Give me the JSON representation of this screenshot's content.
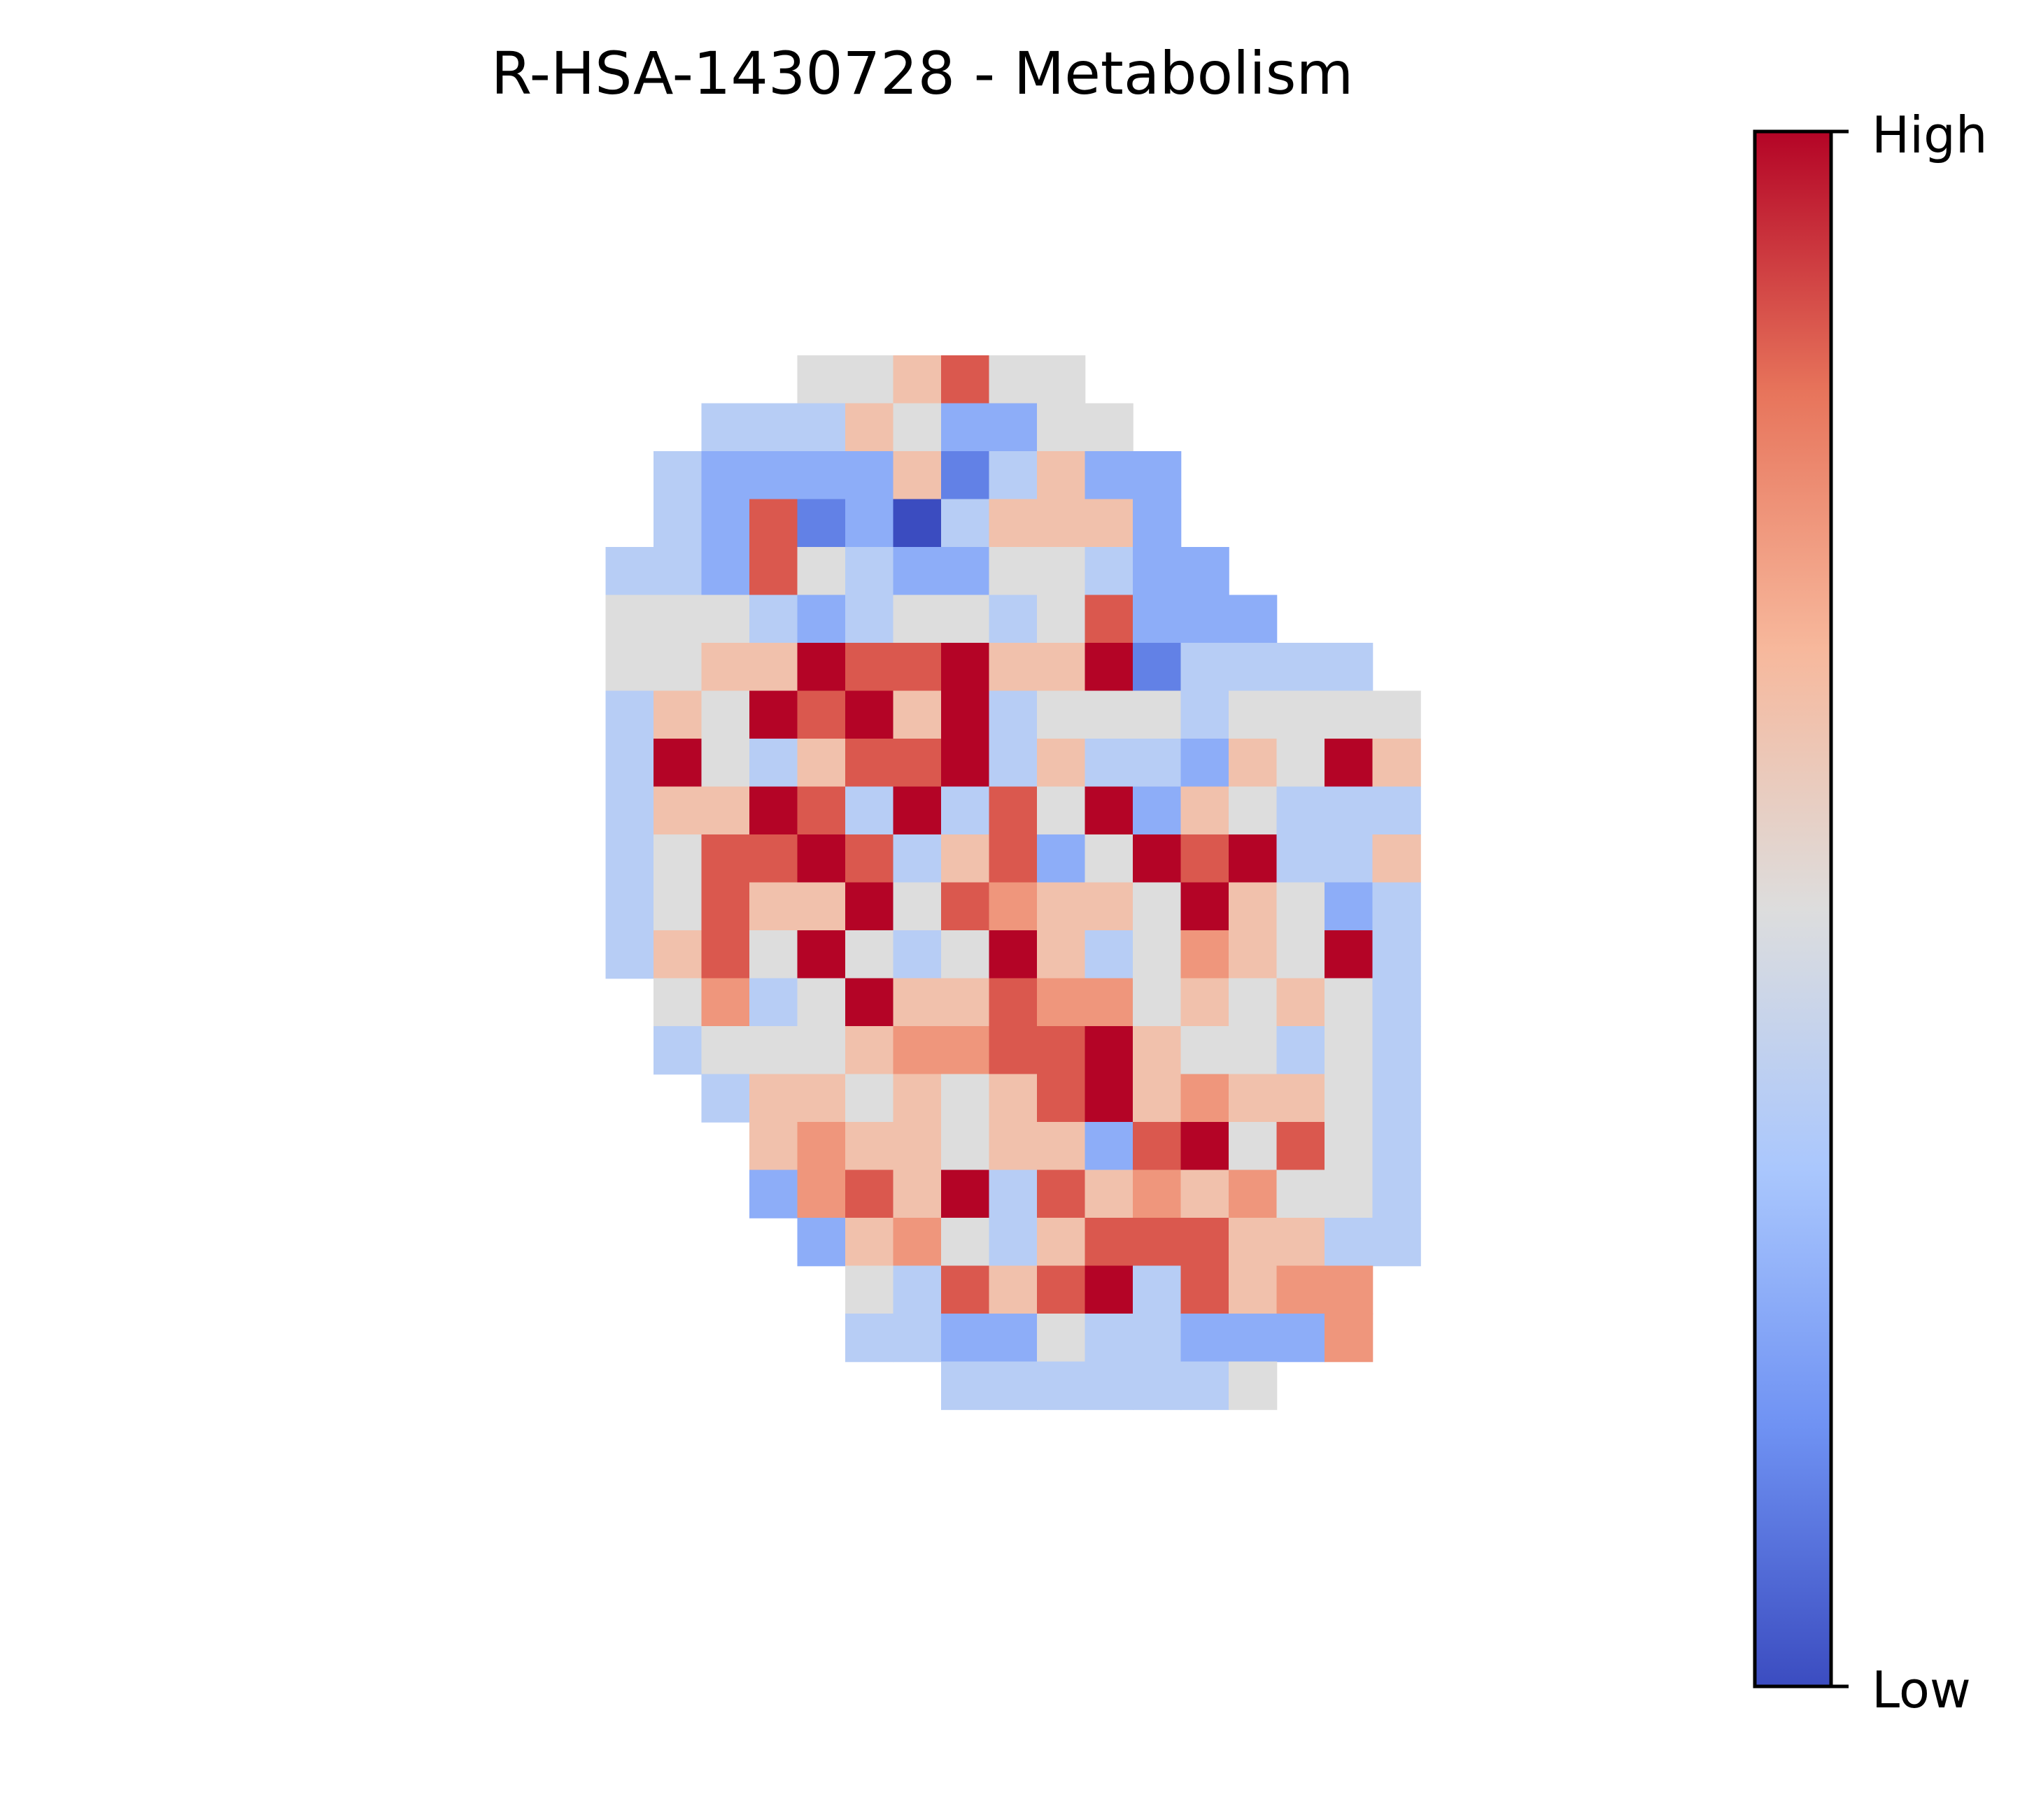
{
  "chart_data": {
    "type": "heatmap",
    "title": "R-HSA-1430728 - Metabolism",
    "colorbar": {
      "high_label": "High",
      "low_label": "Low",
      "colormap": "coolwarm",
      "colors": [
        "#3b4cc0",
        "#6f92f3",
        "#aac7fd",
        "#dddddd",
        "#f7b89c",
        "#e7745b",
        "#b40426"
      ]
    },
    "grid_rows": [
      "00000005568550000000",
      "00000444653355000000",
      "00004333362463300000",
      "00004382314666300000",
      "00044385433554330000",
      "00055543455458333000",
      "00055669889669244440",
      "00046598969455545555",
      "00049546889464436596",
      "00046698494859365444",
      "00045889846835989446",
      "00045866958766596534",
      "00046859545964576594",
      "00005745966877565654",
      "00004555677889655454",
      "00000466565689676654",
      "00000067665663895854",
      "00000037869486767554",
      "00000003675468886644",
      "00000000548689486770",
      "00000000443354433370",
      "00000000004444445000"
    ]
  }
}
